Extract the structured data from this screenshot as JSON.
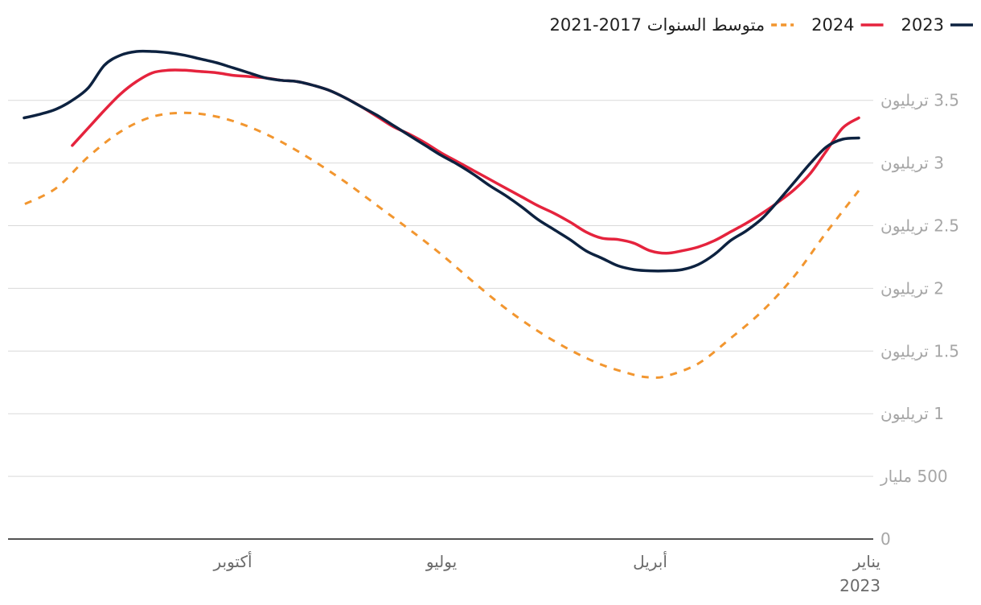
{
  "chart_data": {
    "type": "line",
    "title": "",
    "xlabel": "",
    "ylabel": "",
    "ylim": [
      0,
      3.8
    ],
    "yticks": [
      {
        "value": 0,
        "label": "0"
      },
      {
        "value": 0.5,
        "label": "500 مليار"
      },
      {
        "value": 1,
        "label": "1 تريليون"
      },
      {
        "value": 1.5,
        "label": "1.5 تريليون"
      },
      {
        "value": 2,
        "label": "2 تريليون"
      },
      {
        "value": 2.5,
        "label": "2.5 تريليون"
      },
      {
        "value": 3,
        "label": "3 تريليون"
      },
      {
        "value": 3.5,
        "label": "3.5 تريليون"
      }
    ],
    "xticks": [
      {
        "week": 0,
        "label": "يناير",
        "sublabel": "2023"
      },
      {
        "week": 13,
        "label": "أبريل"
      },
      {
        "week": 26,
        "label": "يوليو"
      },
      {
        "week": 39,
        "label": "أكتوبر"
      }
    ],
    "x_domain": [
      0,
      52
    ],
    "x_direction": "right-to-left",
    "legend_position": "top-right",
    "series": [
      {
        "name": "2023",
        "color": "#0d2240",
        "style": "solid",
        "x": [
          0,
          1,
          2,
          3,
          4,
          5,
          6,
          7,
          8,
          9,
          10,
          11,
          12,
          13,
          14,
          15,
          16,
          17,
          18,
          19,
          20,
          21,
          22,
          23,
          24,
          25,
          26,
          27,
          28,
          29,
          30,
          31,
          32,
          33,
          34,
          35,
          36,
          37,
          38,
          39,
          40,
          41,
          42,
          43,
          44,
          45,
          46,
          47,
          48,
          49,
          50,
          51,
          52
        ],
        "values": [
          3.2,
          3.19,
          3.13,
          3.0,
          2.85,
          2.7,
          2.56,
          2.46,
          2.38,
          2.27,
          2.19,
          2.15,
          2.14,
          2.14,
          2.15,
          2.18,
          2.24,
          2.3,
          2.39,
          2.47,
          2.55,
          2.65,
          2.74,
          2.82,
          2.91,
          2.99,
          3.06,
          3.14,
          3.22,
          3.3,
          3.38,
          3.45,
          3.52,
          3.58,
          3.62,
          3.65,
          3.66,
          3.68,
          3.72,
          3.76,
          3.8,
          3.83,
          3.86,
          3.88,
          3.89,
          3.89,
          3.86,
          3.78,
          3.6,
          3.5,
          3.43,
          3.39,
          3.36
        ]
      },
      {
        "name": "2024",
        "color": "#e5233d",
        "style": "solid",
        "x": [
          0,
          1,
          2,
          3,
          4,
          5,
          6,
          7,
          8,
          9,
          10,
          11,
          12,
          13,
          14,
          15,
          16,
          17,
          18,
          19,
          20,
          21,
          22,
          23,
          24,
          25,
          26,
          27,
          28,
          29,
          30,
          31,
          32,
          33,
          34,
          35,
          36,
          37,
          38,
          39,
          40,
          41,
          42,
          43,
          44,
          45,
          46,
          47,
          48,
          49
        ],
        "values": [
          3.36,
          3.28,
          3.1,
          2.92,
          2.79,
          2.69,
          2.6,
          2.52,
          2.45,
          2.38,
          2.33,
          2.3,
          2.28,
          2.3,
          2.36,
          2.39,
          2.4,
          2.45,
          2.53,
          2.6,
          2.66,
          2.73,
          2.8,
          2.87,
          2.94,
          3.01,
          3.08,
          3.16,
          3.23,
          3.29,
          3.37,
          3.45,
          3.52,
          3.58,
          3.62,
          3.65,
          3.66,
          3.68,
          3.69,
          3.7,
          3.72,
          3.73,
          3.74,
          3.74,
          3.72,
          3.65,
          3.55,
          3.42,
          3.28,
          3.14
        ]
      },
      {
        "name": "متوسط السنوات 2017-2021",
        "color": "#f2962f",
        "style": "dashed",
        "x": [
          0,
          2,
          4,
          6,
          8,
          10,
          12,
          13,
          14,
          16,
          18,
          20,
          22,
          24,
          26,
          28,
          30,
          32,
          34,
          36,
          38,
          40,
          42,
          44,
          46,
          48,
          50,
          52
        ],
        "values": [
          2.78,
          2.45,
          2.1,
          1.82,
          1.6,
          1.4,
          1.3,
          1.29,
          1.31,
          1.39,
          1.51,
          1.66,
          1.84,
          2.05,
          2.27,
          2.47,
          2.66,
          2.85,
          3.02,
          3.17,
          3.29,
          3.37,
          3.4,
          3.37,
          3.25,
          3.05,
          2.8,
          2.67
        ]
      }
    ]
  },
  "colors": {
    "grid": "#d9d9d9",
    "axis": "#1a1a1a",
    "ytick_text": "#a6a6a6",
    "xtick_text": "#6b6b6b"
  }
}
